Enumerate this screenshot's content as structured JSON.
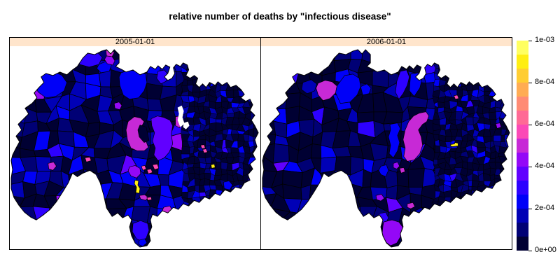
{
  "figure": {
    "title": "relative number of deaths by \"infectious disease\"",
    "background": "#FFFFFF"
  },
  "panels": [
    {
      "label": "2005-01-01"
    },
    {
      "label": "2006-01-01"
    }
  ],
  "strip": {
    "background": "#FFE5CC",
    "border": "#000000"
  },
  "colorbar": {
    "tick_labels": [
      "0e+00",
      "2e-04",
      "4e-04",
      "6e-04",
      "8e-04",
      "1e-03"
    ],
    "colors": [
      "#000033",
      "#000075",
      "#0000B6",
      "#0000F8",
      "#2D00FF",
      "#6100FF",
      "#9408F7",
      "#C729D6",
      "#FB49B6",
      "#FF6A95",
      "#FF8B74",
      "#FFAC53",
      "#FFCD32",
      "#FFEE12",
      "#FFFF60"
    ]
  },
  "chart_data": {
    "type": "choropleth",
    "title": "relative number of deaths by \"infectious disease\"",
    "panels": [
      "2005-01-01",
      "2006-01-01"
    ],
    "value_scale": {
      "min": 0,
      "max": 0.001,
      "tick_values": [
        0,
        0.0002,
        0.0004,
        0.0006,
        0.0008,
        0.001
      ],
      "tick_labels": [
        "0e+00",
        "2e-04",
        "4e-04",
        "6e-04",
        "8e-04",
        "1e-03"
      ]
    },
    "palette": [
      "#000033",
      "#000075",
      "#0000B6",
      "#0000F8",
      "#2D00FF",
      "#6100FF",
      "#9408F7",
      "#C729D6",
      "#FB49B6",
      "#FF6A95",
      "#FF8B74",
      "#FFAC53",
      "#FFCD32",
      "#FFEE12",
      "#FFFF60"
    ],
    "legend_position": "right",
    "description": "Two lattice panels showing the same municipal-polygon region; most polygons sit at the dark-navy low end of the scale, with scattered bright-blue, violet, magenta and pink hotspots and rare yellow extremes. 2005 panel has a large violet hotspot in the center with a magenta patch beside it and a yellow sliver to the south; 2006 panel has a tall magenta hotspot in the center, a magenta patch in the northwest and a small yellow dash to the east."
  }
}
